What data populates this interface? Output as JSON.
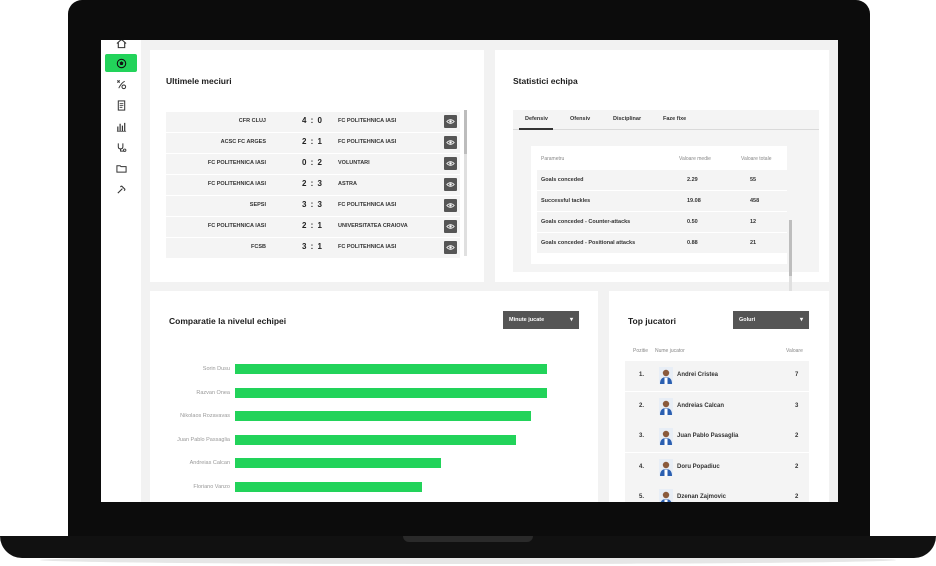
{
  "sidebar": {
    "icons": [
      "home-icon",
      "football-icon",
      "tactics-icon",
      "report-icon",
      "stats-bars-icon",
      "stethoscope-icon",
      "folder-icon",
      "whistle-icon"
    ],
    "active_index": 1,
    "accent": "#22d35a"
  },
  "matches": {
    "title": "Ultimele meciuri",
    "rows": [
      {
        "home": "CFR CLUJ",
        "score": "4 : 0",
        "away": "FC POLITEHNICA IASI"
      },
      {
        "home": "ACSC FC ARGES",
        "score": "2 : 1",
        "away": "FC POLITEHNICA IASI"
      },
      {
        "home": "FC POLITEHNICA IASI",
        "score": "0 : 2",
        "away": "VOLUNTARI"
      },
      {
        "home": "FC POLITEHNICA IASI",
        "score": "2 : 3",
        "away": "ASTRA"
      },
      {
        "home": "SEPSI",
        "score": "3 : 3",
        "away": "FC POLITEHNICA IASI"
      },
      {
        "home": "FC POLITEHNICA IASI",
        "score": "2 : 1",
        "away": "UNIVERSITATEA CRAIOVA"
      },
      {
        "home": "FCSB",
        "score": "3 : 1",
        "away": "FC POLITEHNICA IASI"
      }
    ]
  },
  "team_stats": {
    "title": "Statistici echipa",
    "tabs": [
      "Defensiv",
      "Ofensiv",
      "Disciplinar",
      "Faze fixe"
    ],
    "active_tab": 0,
    "headers": {
      "param": "Parametru",
      "avg": "Valoare medie",
      "total": "Valoare totale"
    },
    "rows": [
      {
        "param": "Goals conceded",
        "avg": "2.29",
        "total": "55"
      },
      {
        "param": "Successful tackles",
        "avg": "19.08",
        "total": "458"
      },
      {
        "param": "Goals conceded - Counter-attacks",
        "avg": "0.50",
        "total": "12"
      },
      {
        "param": "Goals conceded - Positional attacks",
        "avg": "0.88",
        "total": "21"
      }
    ]
  },
  "comparison": {
    "title": "Comparatie la nivelul echipei",
    "dropdown": "Minute jucate",
    "caret": "▾",
    "bar_color": "#22d35a",
    "chart_data": {
      "type": "bar",
      "categories": [
        "Sorin Dusu",
        "Razvan Onea",
        "Nikolaos Rozavavas",
        "Juan Pablo Passaglia",
        "Andreias Calcan",
        "Floriano Vanzo"
      ],
      "values": [
        1.0,
        1.0,
        0.95,
        0.9,
        0.66,
        0.6
      ]
    }
  },
  "top_players": {
    "title": "Top jucatori",
    "dropdown": "Goluri",
    "caret": "▾",
    "headers": {
      "pos": "Pozitie",
      "name": "Nume jucator",
      "value": "Valoare"
    },
    "rows": [
      {
        "pos": "1.",
        "name": "Andrei Cristea",
        "value": "7"
      },
      {
        "pos": "2.",
        "name": "Andreias Calcan",
        "value": "3"
      },
      {
        "pos": "3.",
        "name": "Juan Pablo Passaglia",
        "value": "2"
      },
      {
        "pos": "4.",
        "name": "Doru Popadiuc",
        "value": "2"
      },
      {
        "pos": "5.",
        "name": "Dzenan Zajmovic",
        "value": "2"
      }
    ]
  }
}
